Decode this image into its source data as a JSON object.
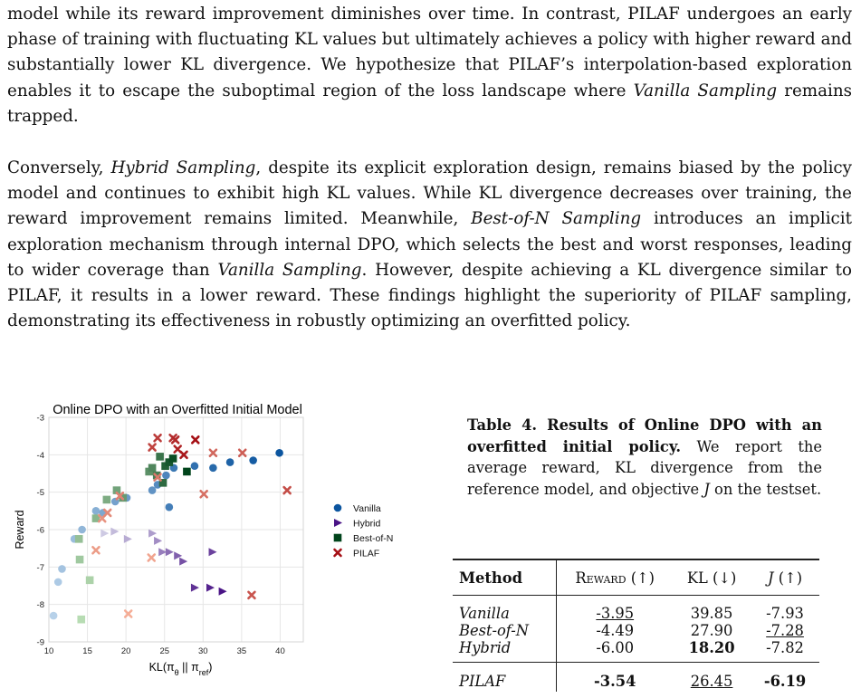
{
  "paragraphs": {
    "p1": {
      "seg1": "model while its reward improvement diminishes over time. In contrast, PILAF undergoes an early phase of training with fluctuating KL values but ultimately achieves a policy with higher reward and substantially lower KL divergence. We hypothesize that PILAF’s interpolation-based exploration enables it to escape the suboptimal region of the loss landscape where ",
      "seg2_italic": "Vanilla Sampling",
      "seg3": " remains trapped."
    },
    "p2": {
      "seg1": "Conversely, ",
      "seg2_italic": "Hybrid Sampling",
      "seg3": ", despite its explicit exploration design, remains biased by the policy model and continues to exhibit high KL values. While KL divergence decreases over training, the reward improvement remains limited. Meanwhile, ",
      "seg4_italic": "Best-of-N Sampling",
      "seg5": " introduces an implicit exploration mechanism through internal DPO, which selects the best and worst responses, leading to wider coverage than ",
      "seg6_italic": "Vanilla Sampling",
      "seg7": ". However, despite achieving a KL divergence similar to PILAF, it results in a lower reward. These findings highlight the superiority of PILAF sampling, demonstrating its effectiveness in robustly optimizing an overfitted policy."
    }
  },
  "caption": {
    "bold": "Table 4. Results of Online DPO with an overfitted initial policy.",
    "text1": " We report the average reward, KL divergence from the reference model, and objective ",
    "italic_J": "J",
    "text2": " on the testset."
  },
  "table": {
    "headers": {
      "method": "Method",
      "reward": "Reward (↑)",
      "kl": "KL (↓)",
      "j_symbol": "J",
      "j_arrow": " (↑)"
    },
    "rows": [
      {
        "method": "Vanilla",
        "reward": "-3.95",
        "kl": "39.85",
        "j": "-7.93"
      },
      {
        "method": "Best-of-N",
        "reward": "-4.49",
        "kl": "27.90",
        "j": "-7.28"
      },
      {
        "method": "Hybrid",
        "reward": "-6.00",
        "kl": "18.20",
        "j": "-7.82"
      },
      {
        "method": "PILAF",
        "reward": "-3.54",
        "kl": "26.45",
        "j": "-6.19"
      }
    ]
  },
  "chart_data": {
    "type": "scatter",
    "title": "Online DPO with an Overfitted Initial Model",
    "xlabel": "KL(πθ || πref)",
    "xlabel_parts": {
      "main": "KL(π",
      "sub1": "θ",
      "mid": " || π",
      "sub2": "ref",
      "end": ")"
    },
    "ylabel": "Reward",
    "xlim": [
      10,
      43
    ],
    "ylim": [
      -9,
      -3
    ],
    "xticks": [
      10,
      15,
      20,
      25,
      30,
      35,
      40
    ],
    "yticks": [
      -9,
      -8,
      -7,
      -6,
      -5,
      -4,
      -3
    ],
    "grid": true,
    "legend_position": "right",
    "note": "point shade grows darker with training progress",
    "series": [
      {
        "name": "Vanilla",
        "marker": "circle",
        "color_light": "#c6dcef",
        "color_dark": "#0b559f",
        "points": [
          [
            10.6,
            -8.3
          ],
          [
            11.2,
            -7.4
          ],
          [
            11.7,
            -7.05
          ],
          [
            13.3,
            -6.25
          ],
          [
            14.3,
            -6.0
          ],
          [
            16.1,
            -5.5
          ],
          [
            17.0,
            -5.55
          ],
          [
            18.6,
            -5.25
          ],
          [
            20.1,
            -5.15
          ],
          [
            23.4,
            -4.95
          ],
          [
            24.1,
            -4.8
          ],
          [
            25.2,
            -4.55
          ],
          [
            25.6,
            -5.4
          ],
          [
            26.2,
            -4.35
          ],
          [
            28.9,
            -4.3
          ],
          [
            31.3,
            -4.35
          ],
          [
            33.5,
            -4.2
          ],
          [
            36.5,
            -4.15
          ],
          [
            39.9,
            -3.95
          ]
        ]
      },
      {
        "name": "Hybrid",
        "marker": "triangle-right",
        "color_light": "#dadaeb",
        "color_dark": "#4a1486",
        "points": [
          [
            17.2,
            -6.1
          ],
          [
            18.5,
            -6.05
          ],
          [
            20.2,
            -6.25
          ],
          [
            23.4,
            -6.1
          ],
          [
            24.1,
            -6.3
          ],
          [
            24.7,
            -6.6
          ],
          [
            25.6,
            -6.6
          ],
          [
            26.7,
            -6.7
          ],
          [
            27.4,
            -6.85
          ],
          [
            31.2,
            -6.6
          ],
          [
            28.9,
            -7.55
          ],
          [
            30.9,
            -7.55
          ],
          [
            32.5,
            -7.65
          ]
        ]
      },
      {
        "name": "Best-of-N",
        "marker": "square",
        "color_light": "#c7e9c0",
        "color_dark": "#00441b",
        "points": [
          [
            14.2,
            -8.4
          ],
          [
            15.3,
            -7.35
          ],
          [
            14.0,
            -6.8
          ],
          [
            13.9,
            -6.25
          ],
          [
            16.1,
            -5.7
          ],
          [
            17.5,
            -5.2
          ],
          [
            18.8,
            -4.95
          ],
          [
            19.6,
            -5.15
          ],
          [
            23.0,
            -4.45
          ],
          [
            23.4,
            -4.35
          ],
          [
            24.0,
            -4.55
          ],
          [
            24.4,
            -4.05
          ],
          [
            24.8,
            -4.75
          ],
          [
            25.1,
            -4.3
          ],
          [
            25.6,
            -4.2
          ],
          [
            26.1,
            -4.1
          ],
          [
            27.9,
            -4.45
          ]
        ]
      },
      {
        "name": "PILAF",
        "marker": "x",
        "color_light": "#fcbba1",
        "color_dark": "#a50f15",
        "points": [
          [
            20.3,
            -8.25
          ],
          [
            23.3,
            -6.75
          ],
          [
            16.1,
            -6.55
          ],
          [
            16.9,
            -5.7
          ],
          [
            17.6,
            -5.55
          ],
          [
            19.2,
            -5.1
          ],
          [
            24.1,
            -4.6
          ],
          [
            30.1,
            -5.05
          ],
          [
            31.3,
            -3.95
          ],
          [
            35.1,
            -3.95
          ],
          [
            36.3,
            -7.75
          ],
          [
            40.9,
            -4.95
          ],
          [
            23.4,
            -3.8
          ],
          [
            24.1,
            -3.55
          ],
          [
            26.1,
            -3.55
          ],
          [
            26.4,
            -3.6
          ],
          [
            26.7,
            -3.85
          ],
          [
            27.5,
            -4.0
          ],
          [
            29.0,
            -3.6
          ]
        ]
      }
    ]
  }
}
